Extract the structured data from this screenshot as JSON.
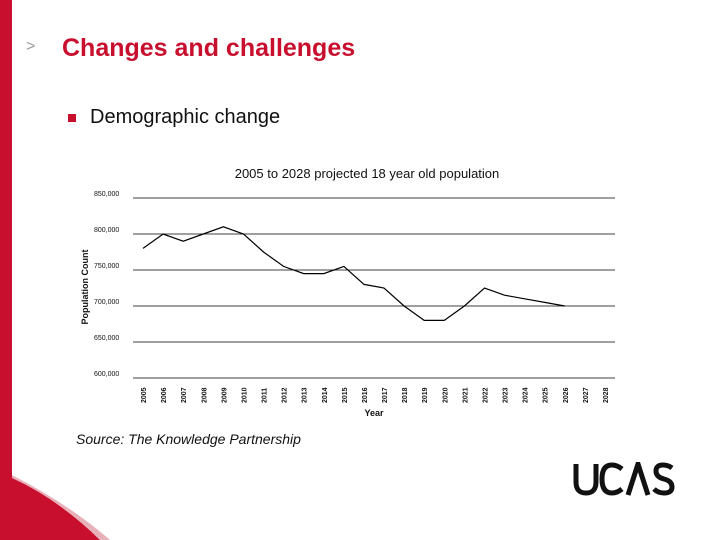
{
  "slide": {
    "arrow_glyph": ">",
    "title": "Changes and challenges",
    "bullet": "Demographic change",
    "source": "Source: The Knowledge Partnership",
    "logo_text": "UCAS"
  },
  "colors": {
    "accent": "#c8102e",
    "line": "#000000",
    "grid": "#000000"
  },
  "chart_data": {
    "type": "line",
    "title": "2005 to 2028 projected 18 year old population",
    "xlabel": "Year",
    "ylabel": "Population Count",
    "ylim": [
      600000,
      850000
    ],
    "y_ticks": [
      600000,
      650000,
      700000,
      750000,
      800000,
      850000
    ],
    "y_tick_labels": [
      "600,000",
      "650,000",
      "700,000",
      "750,000",
      "800,000",
      "850,000"
    ],
    "categories": [
      "2005",
      "2006",
      "2007",
      "2008",
      "2009",
      "2010",
      "2011",
      "2012",
      "2013",
      "2014",
      "2015",
      "2016",
      "2017",
      "2018",
      "2019",
      "2020",
      "2021",
      "2022",
      "2023",
      "2024",
      "2025",
      "2026",
      "2027",
      "2028"
    ],
    "values": [
      780000,
      800000,
      790000,
      800000,
      810000,
      800000,
      775000,
      755000,
      745000,
      745000,
      755000,
      730000,
      725000,
      700000,
      680000,
      680000,
      700000,
      725000,
      715000,
      710000,
      705000,
      700000,
      null,
      null
    ],
    "grid": true,
    "legend": "none"
  }
}
